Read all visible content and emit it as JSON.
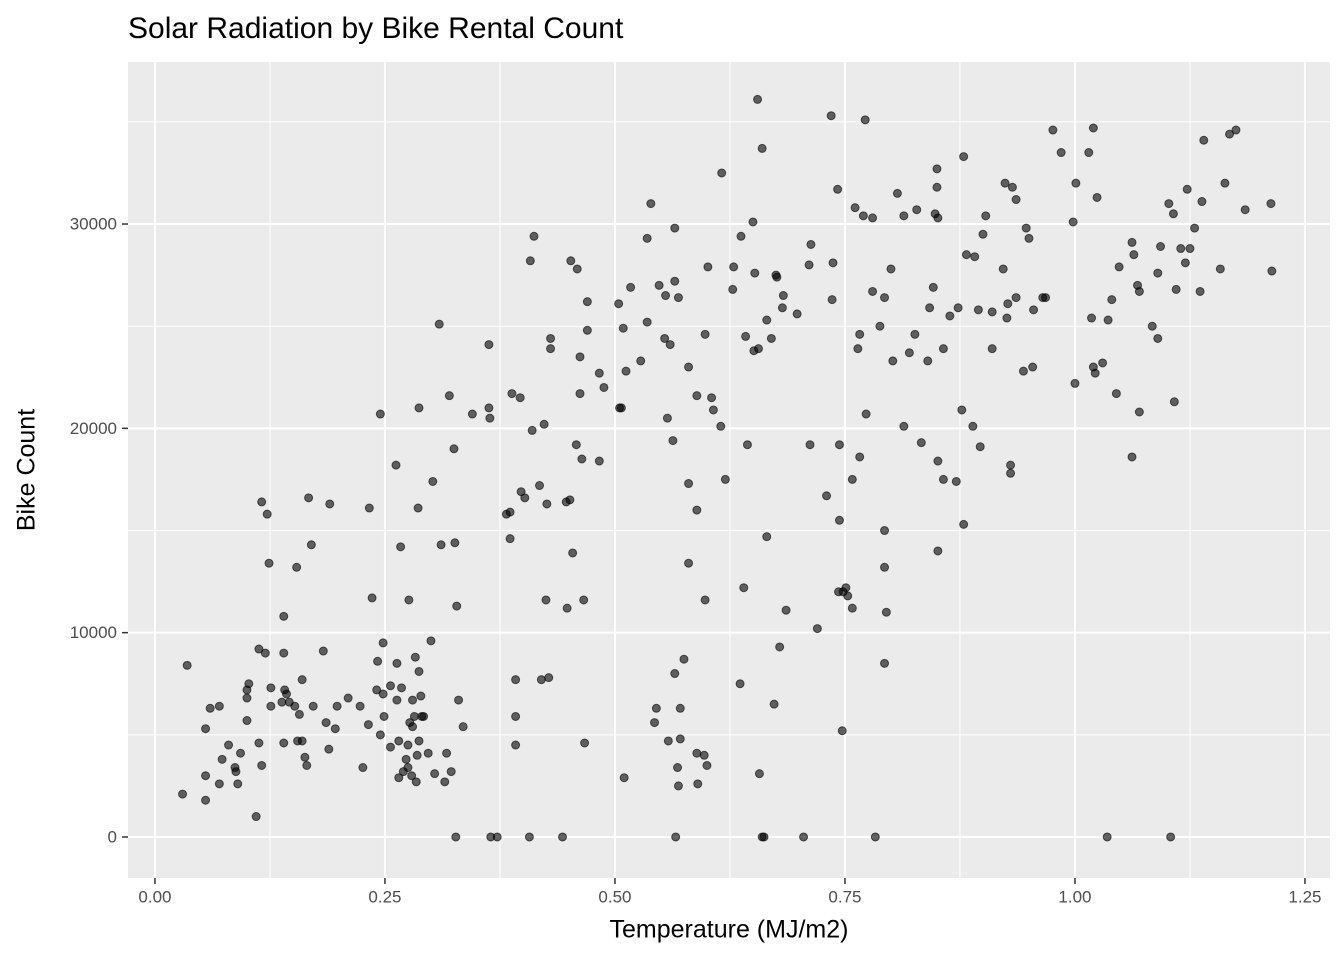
{
  "chart_data": {
    "type": "scatter",
    "title": "Solar Radiation by Bike Rental Count",
    "x_label": "Temperature (MJ/m2)",
    "y_label": "Bike Count",
    "color": "#000000",
    "alpha": 0.6,
    "grid": true,
    "xlim": [
      -0.0293,
      1.2772
    ],
    "ylim": [
      -2007,
      37930
    ],
    "xticks": [
      {
        "value": 0,
        "label": "0.00"
      },
      {
        "value": 0.25,
        "label": "0.25"
      },
      {
        "value": 0.5,
        "label": "0.50"
      },
      {
        "value": 0.75,
        "label": "0.75"
      },
      {
        "value": 1,
        "label": "1.00"
      },
      {
        "value": 1.25,
        "label": "1.25"
      }
    ],
    "yticks": [
      0,
      10000,
      20000,
      30000
    ],
    "xminor": [
      0.125,
      0.375,
      0.625,
      0.875,
      1.125
    ],
    "yminor": [
      5000,
      15000,
      25000,
      35000
    ],
    "x": [
      0.03,
      0.035,
      0.055,
      0.055,
      0.055,
      0.06,
      0.07,
      0.07,
      0.073,
      0.08,
      0.087,
      0.088,
      0.09,
      0.093,
      0.1,
      0.1,
      0.1,
      0.102,
      0.11,
      0.113,
      0.113,
      0.116,
      0.116,
      0.12,
      0.122,
      0.124,
      0.126,
      0.126,
      0.138,
      0.14,
      0.14,
      0.14,
      0.141,
      0.143,
      0.146,
      0.152,
      0.154,
      0.155,
      0.157,
      0.16,
      0.16,
      0.163,
      0.165,
      0.167,
      0.17,
      0.172,
      0.183,
      0.186,
      0.189,
      0.19,
      0.196,
      0.198,
      0.21,
      0.223,
      0.226,
      0.232,
      0.233,
      0.236,
      0.241,
      0.242,
      0.245,
      0.245,
      0.248,
      0.248,
      0.249,
      0.256,
      0.256,
      0.262,
      0.263,
      0.263,
      0.265,
      0.265,
      0.267,
      0.268,
      0.27,
      0.273,
      0.275,
      0.275,
      0.277,
      0.276,
      0.279,
      0.28,
      0.28,
      0.282,
      0.283,
      0.284,
      0.285,
      0.286,
      0.287,
      0.287,
      0.287,
      0.289,
      0.29,
      0.292,
      0.297,
      0.3,
      0.302,
      0.304,
      0.309,
      0.311,
      0.315,
      0.317,
      0.32,
      0.322,
      0.325,
      0.326,
      0.327,
      0.328,
      0.33,
      0.335,
      0.345,
      0.363,
      0.363,
      0.364,
      0.365,
      0.372,
      0.382,
      0.386,
      0.386,
      0.388,
      0.392,
      0.392,
      0.392,
      0.397,
      0.398,
      0.402,
      0.407,
      0.408,
      0.41,
      0.412,
      0.418,
      0.42,
      0.423,
      0.425,
      0.426,
      0.428,
      0.43,
      0.43,
      0.443,
      0.448,
      0.447,
      0.451,
      0.452,
      0.454,
      0.459,
      0.458,
      0.462,
      0.462,
      0.464,
      0.466,
      0.467,
      0.47,
      0.47,
      0.483,
      0.483,
      0.488,
      0.504,
      0.505,
      0.507,
      0.509,
      0.51,
      0.512,
      0.517,
      0.528,
      0.535,
      0.535,
      0.539,
      0.545,
      0.543,
      0.548,
      0.554,
      0.555,
      0.557,
      0.558,
      0.56,
      0.563,
      0.565,
      0.565,
      0.565,
      0.566,
      0.568,
      0.569,
      0.569,
      0.571,
      0.571,
      0.575,
      0.58,
      0.58,
      0.58,
      0.589,
      0.589,
      0.589,
      0.59,
      0.597,
      0.598,
      0.598,
      0.6,
      0.601,
      0.605,
      0.607,
      0.615,
      0.616,
      0.62,
      0.628,
      0.629,
      0.636,
      0.637,
      0.64,
      0.642,
      0.644,
      0.65,
      0.651,
      0.652,
      0.655,
      0.656,
      0.657,
      0.66,
      0.66,
      0.662,
      0.665,
      0.665,
      0.67,
      0.673,
      0.675,
      0.676,
      0.679,
      0.682,
      0.683,
      0.686,
      0.698,
      0.705,
      0.712,
      0.713,
      0.711,
      0.72,
      0.73,
      0.735,
      0.736,
      0.737,
      0.742,
      0.743,
      0.744,
      0.744,
      0.747,
      0.748,
      0.751,
      0.753,
      0.758,
      0.758,
      0.761,
      0.764,
      0.766,
      0.766,
      0.77,
      0.772,
      0.773,
      0.78,
      0.78,
      0.783,
      0.788,
      0.793,
      0.793,
      0.793,
      0.793,
      0.795,
      0.8,
      0.802,
      0.807,
      0.814,
      0.814,
      0.82,
      0.826,
      0.828,
      0.833,
      0.84,
      0.842,
      0.846,
      0.848,
      0.85,
      0.85,
      0.851,
      0.851,
      0.851,
      0.857,
      0.857,
      0.864,
      0.871,
      0.873,
      0.877,
      0.879,
      0.879,
      0.882,
      0.889,
      0.891,
      0.895,
      0.897,
      0.9,
      0.903,
      0.91,
      0.91,
      0.922,
      0.924,
      0.926,
      0.927,
      0.93,
      0.93,
      0.932,
      0.936,
      0.936,
      0.944,
      0.947,
      0.95,
      0.954,
      0.955,
      0.965,
      0.968,
      0.976,
      0.985,
      0.998,
      1.0,
      1.001,
      1.015,
      1.018,
      1.02,
      1.02,
      1.022,
      1.024,
      1.03,
      1.035,
      1.036,
      1.04,
      1.045,
      1.048,
      1.062,
      1.062,
      1.064,
      1.068,
      1.07,
      1.07,
      1.084,
      1.09,
      1.09,
      1.093,
      1.102,
      1.104,
      1.107,
      1.108,
      1.11,
      1.115,
      1.12,
      1.122,
      1.125,
      1.13,
      1.136,
      1.138,
      1.14,
      1.158,
      1.163,
      1.168,
      1.175,
      1.185,
      1.213,
      1.214
    ],
    "y": [
      2100,
      8400,
      5300,
      3000,
      1800,
      6300,
      6400,
      2600,
      3800,
      4500,
      3400,
      3200,
      2600,
      4100,
      5700,
      6800,
      7200,
      7500,
      1000,
      4600,
      9200,
      3500,
      16400,
      9000,
      15800,
      13400,
      6400,
      7300,
      6600,
      10800,
      9000,
      4600,
      7200,
      7000,
      6600,
      6400,
      13200,
      4700,
      6000,
      7700,
      4700,
      3900,
      3500,
      16600,
      14300,
      6400,
      9100,
      5600,
      4300,
      16300,
      5300,
      6400,
      6800,
      6400,
      3400,
      5500,
      16100,
      11700,
      7200,
      8600,
      20700,
      5000,
      9500,
      7000,
      5900,
      4400,
      7400,
      18200,
      6700,
      8500,
      2900,
      4700,
      14200,
      7300,
      3200,
      3800,
      3400,
      4500,
      5600,
      11600,
      3000,
      6700,
      5400,
      5900,
      8800,
      2700,
      4000,
      16100,
      21000,
      8100,
      4700,
      6900,
      5900,
      5900,
      4100,
      9600,
      17400,
      3100,
      25100,
      14300,
      2700,
      4100,
      21600,
      3200,
      19000,
      14400,
      0,
      11300,
      6700,
      5400,
      20700,
      24100,
      21000,
      20500,
      0,
      0,
      15800,
      15900,
      14600,
      21700,
      7700,
      5900,
      4500,
      21500,
      16900,
      16600,
      0,
      28200,
      19900,
      29400,
      17200,
      7700,
      20200,
      11600,
      16300,
      7800,
      24400,
      23900,
      0,
      11200,
      16400,
      16500,
      28200,
      13900,
      27800,
      19200,
      23500,
      21700,
      18500,
      11600,
      4600,
      26200,
      24800,
      22700,
      18400,
      22000,
      26100,
      21000,
      21000,
      24900,
      2900,
      22800,
      26900,
      23300,
      25200,
      29300,
      31000,
      6300,
      5600,
      27000,
      24400,
      26500,
      20500,
      4700,
      24100,
      19400,
      27200,
      8000,
      29800,
      0,
      3400,
      26400,
      2500,
      4800,
      6300,
      8700,
      17300,
      13400,
      23000,
      21600,
      16000,
      4100,
      2600,
      4000,
      11600,
      24600,
      3500,
      27900,
      21500,
      20900,
      20100,
      32500,
      17500,
      26800,
      27900,
      7500,
      29400,
      12200,
      24500,
      19200,
      30100,
      23800,
      27600,
      36100,
      23900,
      3100,
      33700,
      0,
      0,
      14700,
      25300,
      24400,
      6500,
      27500,
      27400,
      9300,
      25900,
      26500,
      11100,
      25600,
      0,
      19200,
      29000,
      28000,
      10200,
      16700,
      35300,
      26300,
      28100,
      31700,
      12000,
      15500,
      19200,
      5200,
      12000,
      12200,
      11800,
      11200,
      17500,
      30800,
      23900,
      24600,
      18600,
      30400,
      35100,
      20700,
      26700,
      30300,
      0,
      25000,
      8500,
      13200,
      15000,
      26400,
      11000,
      27800,
      23300,
      31500,
      20100,
      30400,
      23700,
      24600,
      30700,
      19300,
      23300,
      25900,
      26900,
      30500,
      32700,
      31800,
      30300,
      18400,
      14000,
      23900,
      17500,
      25500,
      17400,
      25900,
      20900,
      33300,
      15300,
      28500,
      20100,
      28400,
      25800,
      19100,
      29500,
      30400,
      23900,
      25700,
      27800,
      32000,
      25400,
      26100,
      18200,
      17800,
      31800,
      31200,
      26400,
      22800,
      29800,
      29300,
      23000,
      25800,
      26400,
      26400,
      34600,
      33500,
      30100,
      22200,
      32000,
      33500,
      25400,
      23000,
      34700,
      22700,
      31300,
      23200,
      0,
      25300,
      26300,
      21700,
      27900,
      18600,
      29100,
      28500,
      27000,
      26700,
      20800,
      25000,
      24400,
      27600,
      28900,
      31000,
      0,
      30500,
      21300,
      26800,
      28800,
      28100,
      31700,
      28800,
      29800,
      26700,
      31100,
      34100,
      27800,
      32000,
      34400,
      34600,
      30700,
      31000,
      27700
    ]
  }
}
